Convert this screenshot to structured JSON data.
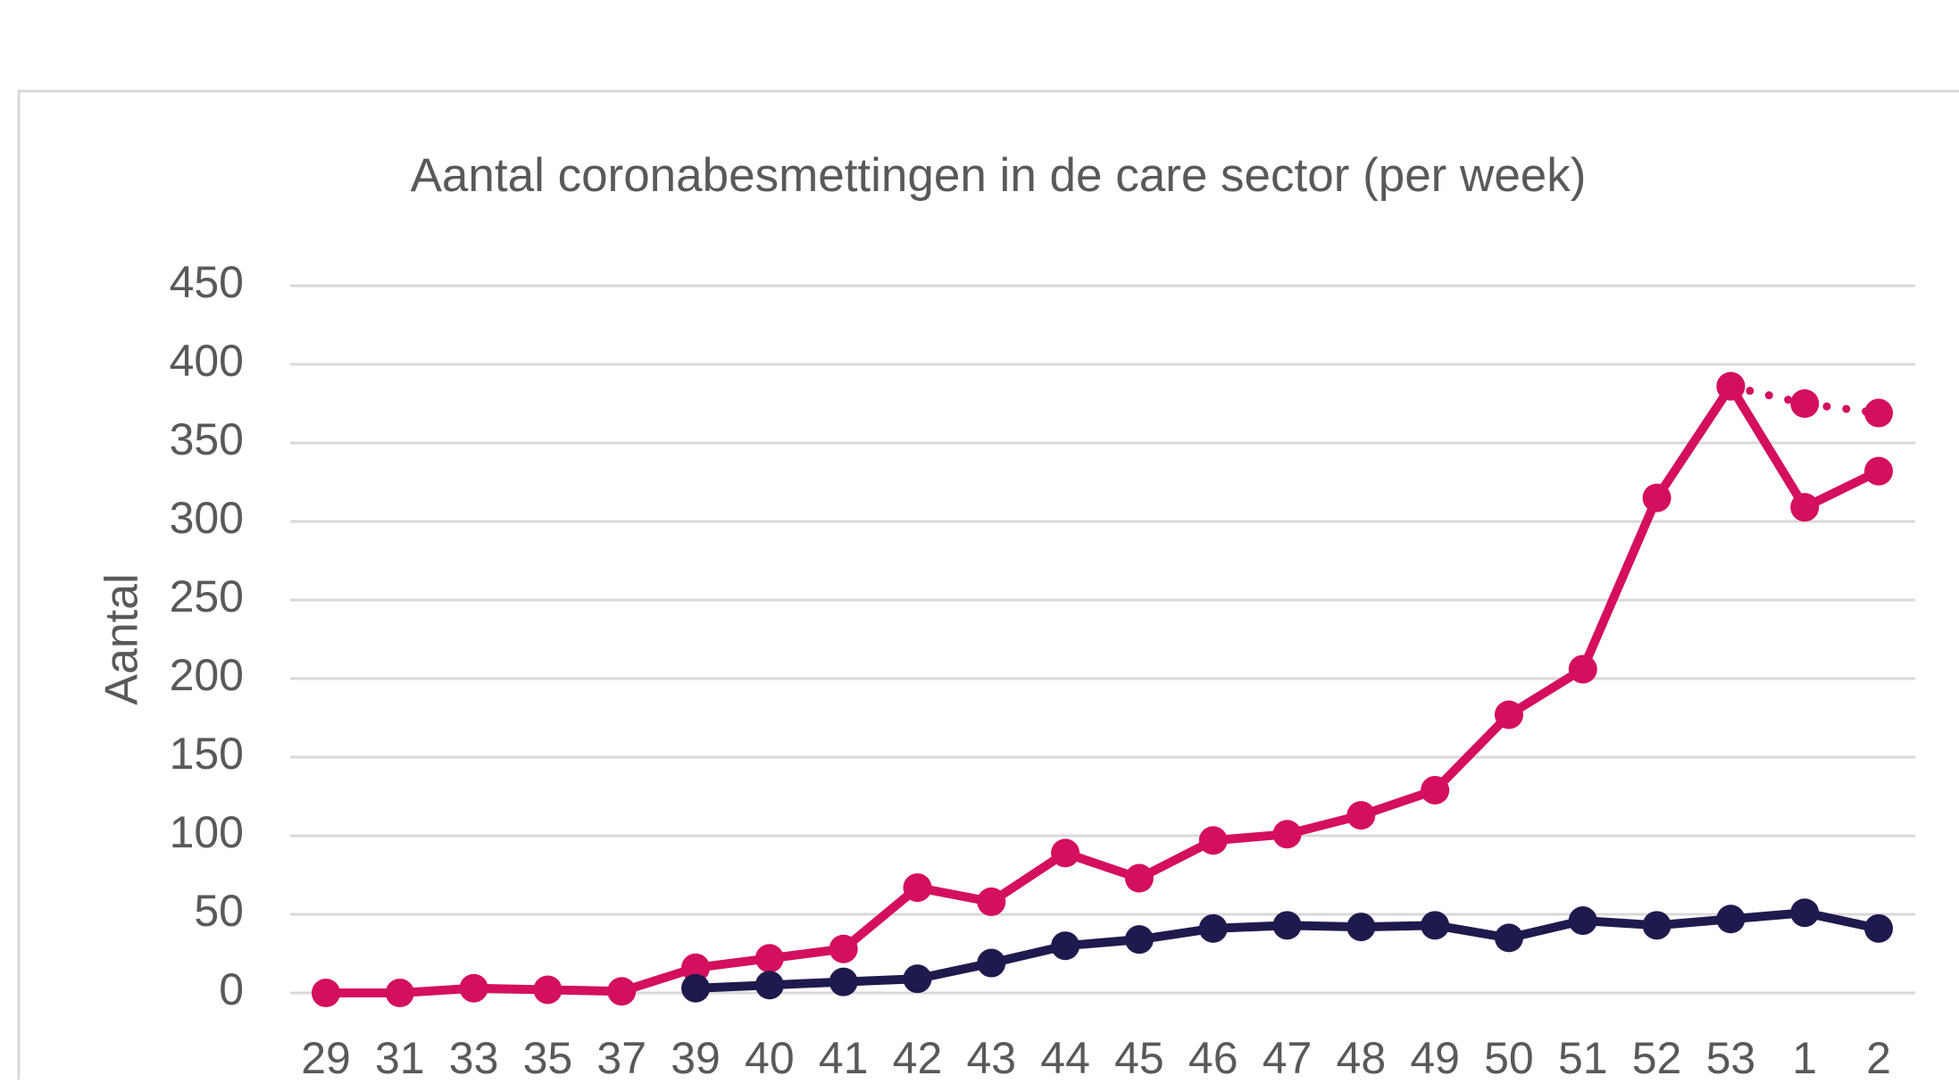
{
  "chart_data": {
    "type": "line",
    "title": "Aantal coronabesmettingen in de care sector (per week)",
    "y_label": "Aantal",
    "categories": [
      "29",
      "31",
      "33",
      "35",
      "37",
      "39",
      "40",
      "41",
      "42",
      "43",
      "44",
      "45",
      "46",
      "47",
      "48",
      "49",
      "50",
      "51",
      "52",
      "53",
      "1",
      "2"
    ],
    "series": [
      {
        "color": "#d40f5d",
        "style": "solid",
        "values": [
          0,
          0,
          3,
          2,
          1,
          16,
          22,
          28,
          67,
          58,
          89,
          73,
          97,
          101,
          113,
          129,
          177,
          206,
          315,
          386,
          309,
          332
        ]
      },
      {
        "color": "#1f1a4e",
        "style": "solid",
        "values": [
          null,
          null,
          null,
          null,
          null,
          3,
          5,
          7,
          9,
          19,
          30,
          34,
          41,
          43,
          42,
          43,
          35,
          46,
          43,
          47,
          51,
          41
        ]
      },
      {
        "color": "#d40f5d",
        "style": "dotted",
        "values": [
          null,
          null,
          null,
          null,
          null,
          null,
          null,
          null,
          null,
          null,
          null,
          null,
          null,
          null,
          null,
          null,
          null,
          null,
          null,
          386,
          375,
          369
        ]
      }
    ],
    "ylim": [
      0,
      450
    ],
    "yticks": [
      0,
      50,
      100,
      150,
      200,
      250,
      300,
      350,
      400,
      450
    ],
    "grid": true
  }
}
